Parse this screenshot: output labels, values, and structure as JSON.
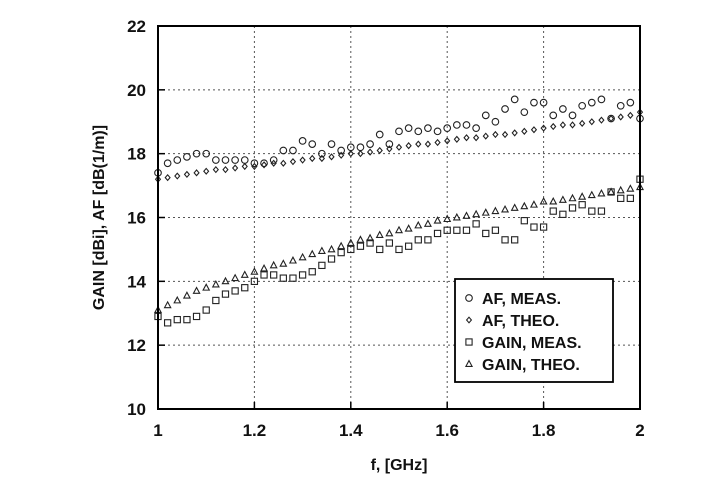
{
  "chart_data": {
    "type": "scatter",
    "xlabel": "f, [GHz]",
    "ylabel": "GAIN [dBi], AF [dB(1/m)]",
    "xlim": [
      1,
      2
    ],
    "ylim": [
      10,
      22
    ],
    "xticks": [
      1,
      1.2,
      1.4,
      1.6,
      1.8,
      2
    ],
    "xtick_labels": [
      "1",
      "1.2",
      "1.4",
      "1.6",
      "1.8",
      "2"
    ],
    "yticks": [
      10,
      12,
      14,
      16,
      18,
      20,
      22
    ],
    "ytick_labels": [
      "10",
      "12",
      "14",
      "16",
      "18",
      "20",
      "22"
    ],
    "grid": true,
    "legend_position": "bottom-right",
    "series": [
      {
        "name": "AF, MEAS.",
        "marker": "circle",
        "x": [
          1.0,
          1.02,
          1.04,
          1.06,
          1.08,
          1.1,
          1.12,
          1.14,
          1.16,
          1.18,
          1.2,
          1.22,
          1.24,
          1.26,
          1.28,
          1.3,
          1.32,
          1.34,
          1.36,
          1.38,
          1.4,
          1.42,
          1.44,
          1.46,
          1.48,
          1.5,
          1.52,
          1.54,
          1.56,
          1.58,
          1.6,
          1.62,
          1.64,
          1.66,
          1.68,
          1.7,
          1.72,
          1.74,
          1.76,
          1.78,
          1.8,
          1.82,
          1.84,
          1.86,
          1.88,
          1.9,
          1.92,
          1.94,
          1.96,
          1.98,
          2.0
        ],
        "y": [
          17.4,
          17.7,
          17.8,
          17.9,
          18.0,
          18.0,
          17.8,
          17.8,
          17.8,
          17.8,
          17.7,
          17.7,
          17.8,
          18.1,
          18.1,
          18.4,
          18.3,
          18.0,
          18.3,
          18.1,
          18.2,
          18.2,
          18.3,
          18.6,
          18.3,
          18.7,
          18.8,
          18.7,
          18.8,
          18.7,
          18.8,
          18.9,
          18.9,
          18.8,
          19.2,
          19.0,
          19.4,
          19.7,
          19.3,
          19.6,
          19.6,
          19.2,
          19.4,
          19.2,
          19.5,
          19.6,
          19.7,
          19.1,
          19.5,
          19.6,
          19.1
        ]
      },
      {
        "name": "AF, THEO.",
        "marker": "diamond",
        "x": [
          1.0,
          1.02,
          1.04,
          1.06,
          1.08,
          1.1,
          1.12,
          1.14,
          1.16,
          1.18,
          1.2,
          1.22,
          1.24,
          1.26,
          1.28,
          1.3,
          1.32,
          1.34,
          1.36,
          1.38,
          1.4,
          1.42,
          1.44,
          1.46,
          1.48,
          1.5,
          1.52,
          1.54,
          1.56,
          1.58,
          1.6,
          1.62,
          1.64,
          1.66,
          1.68,
          1.7,
          1.72,
          1.74,
          1.76,
          1.78,
          1.8,
          1.82,
          1.84,
          1.86,
          1.88,
          1.9,
          1.92,
          1.94,
          1.96,
          1.98,
          2.0
        ],
        "y": [
          17.2,
          17.25,
          17.3,
          17.35,
          17.4,
          17.45,
          17.5,
          17.5,
          17.55,
          17.6,
          17.6,
          17.65,
          17.7,
          17.7,
          17.75,
          17.8,
          17.85,
          17.85,
          17.9,
          17.95,
          18.0,
          18.0,
          18.05,
          18.1,
          18.15,
          18.2,
          18.25,
          18.3,
          18.3,
          18.35,
          18.4,
          18.45,
          18.5,
          18.5,
          18.55,
          18.6,
          18.6,
          18.65,
          18.7,
          18.75,
          18.8,
          18.85,
          18.9,
          18.9,
          18.95,
          19.0,
          19.05,
          19.1,
          19.15,
          19.2,
          19.3
        ]
      },
      {
        "name": "GAIN, MEAS.",
        "marker": "square",
        "x": [
          1.0,
          1.02,
          1.04,
          1.06,
          1.08,
          1.1,
          1.12,
          1.14,
          1.16,
          1.18,
          1.2,
          1.22,
          1.24,
          1.26,
          1.28,
          1.3,
          1.32,
          1.34,
          1.36,
          1.38,
          1.4,
          1.42,
          1.44,
          1.46,
          1.48,
          1.5,
          1.52,
          1.54,
          1.56,
          1.58,
          1.6,
          1.62,
          1.64,
          1.66,
          1.68,
          1.7,
          1.72,
          1.74,
          1.76,
          1.78,
          1.8,
          1.82,
          1.84,
          1.86,
          1.88,
          1.9,
          1.92,
          1.94,
          1.96,
          1.98,
          2.0
        ],
        "y": [
          12.9,
          12.7,
          12.8,
          12.8,
          12.9,
          13.1,
          13.4,
          13.6,
          13.7,
          13.8,
          14.0,
          14.2,
          14.2,
          14.1,
          14.1,
          14.2,
          14.3,
          14.5,
          14.7,
          14.9,
          15.0,
          15.1,
          15.2,
          15.0,
          15.2,
          15.0,
          15.1,
          15.3,
          15.3,
          15.5,
          15.6,
          15.6,
          15.6,
          15.8,
          15.5,
          15.6,
          15.3,
          15.3,
          15.9,
          15.7,
          15.7,
          16.2,
          16.1,
          16.3,
          16.4,
          16.2,
          16.2,
          16.8,
          16.6,
          16.6,
          17.2
        ]
      },
      {
        "name": "GAIN, THEO.",
        "marker": "triangle",
        "x": [
          1.0,
          1.02,
          1.04,
          1.06,
          1.08,
          1.1,
          1.12,
          1.14,
          1.16,
          1.18,
          1.2,
          1.22,
          1.24,
          1.26,
          1.28,
          1.3,
          1.32,
          1.34,
          1.36,
          1.38,
          1.4,
          1.42,
          1.44,
          1.46,
          1.48,
          1.5,
          1.52,
          1.54,
          1.56,
          1.58,
          1.6,
          1.62,
          1.64,
          1.66,
          1.68,
          1.7,
          1.72,
          1.74,
          1.76,
          1.78,
          1.8,
          1.82,
          1.84,
          1.86,
          1.88,
          1.9,
          1.92,
          1.94,
          1.96,
          1.98,
          2.0
        ],
        "y": [
          13.1,
          13.25,
          13.4,
          13.55,
          13.7,
          13.8,
          13.9,
          14.0,
          14.1,
          14.2,
          14.3,
          14.4,
          14.5,
          14.55,
          14.65,
          14.75,
          14.85,
          14.95,
          15.0,
          15.1,
          15.2,
          15.3,
          15.35,
          15.45,
          15.5,
          15.6,
          15.65,
          15.75,
          15.8,
          15.9,
          15.95,
          16.0,
          16.05,
          16.1,
          16.15,
          16.2,
          16.25,
          16.3,
          16.35,
          16.4,
          16.5,
          16.5,
          16.55,
          16.6,
          16.65,
          16.7,
          16.75,
          16.8,
          16.85,
          16.9,
          16.95
        ]
      }
    ]
  }
}
